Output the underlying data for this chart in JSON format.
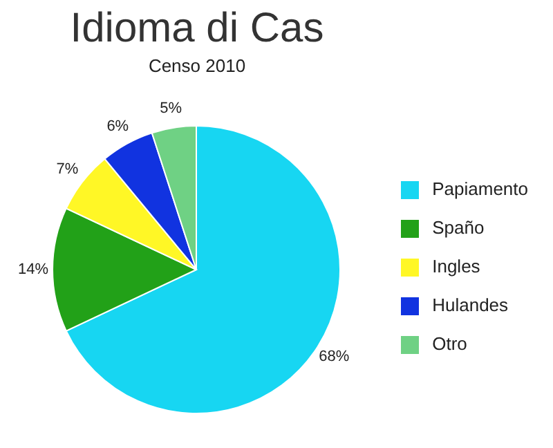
{
  "chart_data": {
    "type": "pie",
    "title": "Idioma di Cas",
    "subtitle": "Censo 2010",
    "categories": [
      "Papiamento",
      "Spaño",
      "Ingles",
      "Hulandes",
      "Otro"
    ],
    "values": [
      68,
      14,
      7,
      6,
      5
    ],
    "colors": [
      "#17d6f2",
      "#22a118",
      "#fff726",
      "#1133e0",
      "#6fd184"
    ],
    "value_labels": [
      "68%",
      "14%",
      "7%",
      "6%",
      "5%"
    ],
    "legend": "right"
  }
}
